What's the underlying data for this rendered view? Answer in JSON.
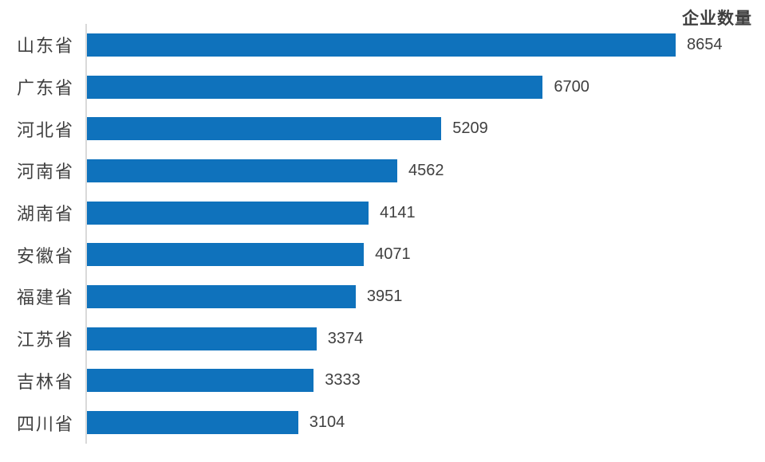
{
  "chart_data": {
    "type": "bar",
    "orientation": "horizontal",
    "title": "企业数量",
    "xlabel": "",
    "ylabel": "",
    "categories": [
      "山东省",
      "广东省",
      "河北省",
      "河南省",
      "湖南省",
      "安徽省",
      "福建省",
      "江苏省",
      "吉林省",
      "四川省"
    ],
    "values": [
      8654,
      6700,
      5209,
      4562,
      4141,
      4071,
      3951,
      3374,
      3333,
      3104
    ],
    "value_labels": [
      "8654",
      "6700",
      "5209",
      "4562",
      "4141",
      "4071",
      "3951",
      "3374",
      "3333",
      "3104"
    ],
    "xlim": [
      0,
      8654
    ],
    "grid": false,
    "legend": false,
    "data_labels_position": "outside-end",
    "title_position": "top-right",
    "colors": {
      "bar": "#0F72BC",
      "axis": "#D9D9D9",
      "label": "#404040",
      "value": "#404040",
      "title": "#3F3F3F",
      "background": "#FFFFFF"
    }
  }
}
